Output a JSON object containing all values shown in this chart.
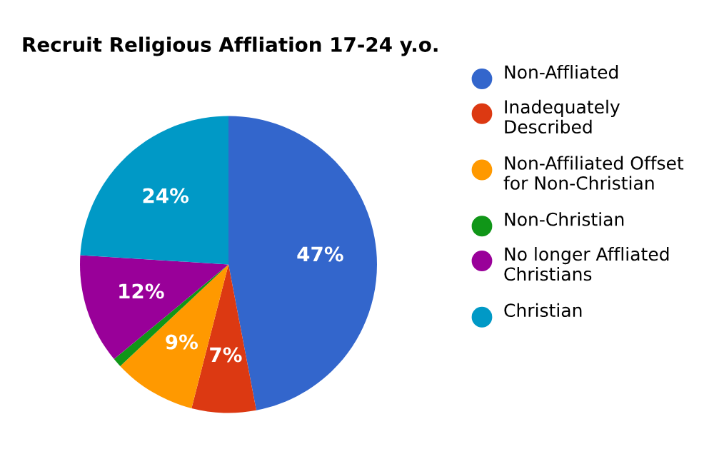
{
  "chart_data": {
    "type": "pie",
    "title": "Recruit Religious Affliation 17-24 y.o.",
    "categories": [
      "Non-Affliated",
      "Inadequately Described",
      "Non-Affiliated Offset for Non-Christian",
      "Non-Christian",
      "No longer Affliated Christians",
      "Christian"
    ],
    "values": [
      47,
      7,
      9,
      1,
      12,
      24
    ],
    "colors": [
      "#3366cc",
      "#dc3912",
      "#ff9900",
      "#109618",
      "#990099",
      "#0099c6"
    ],
    "value_labels": [
      "47%",
      "7%",
      "9%",
      null,
      "12%",
      "24%"
    ],
    "legend": "right"
  }
}
